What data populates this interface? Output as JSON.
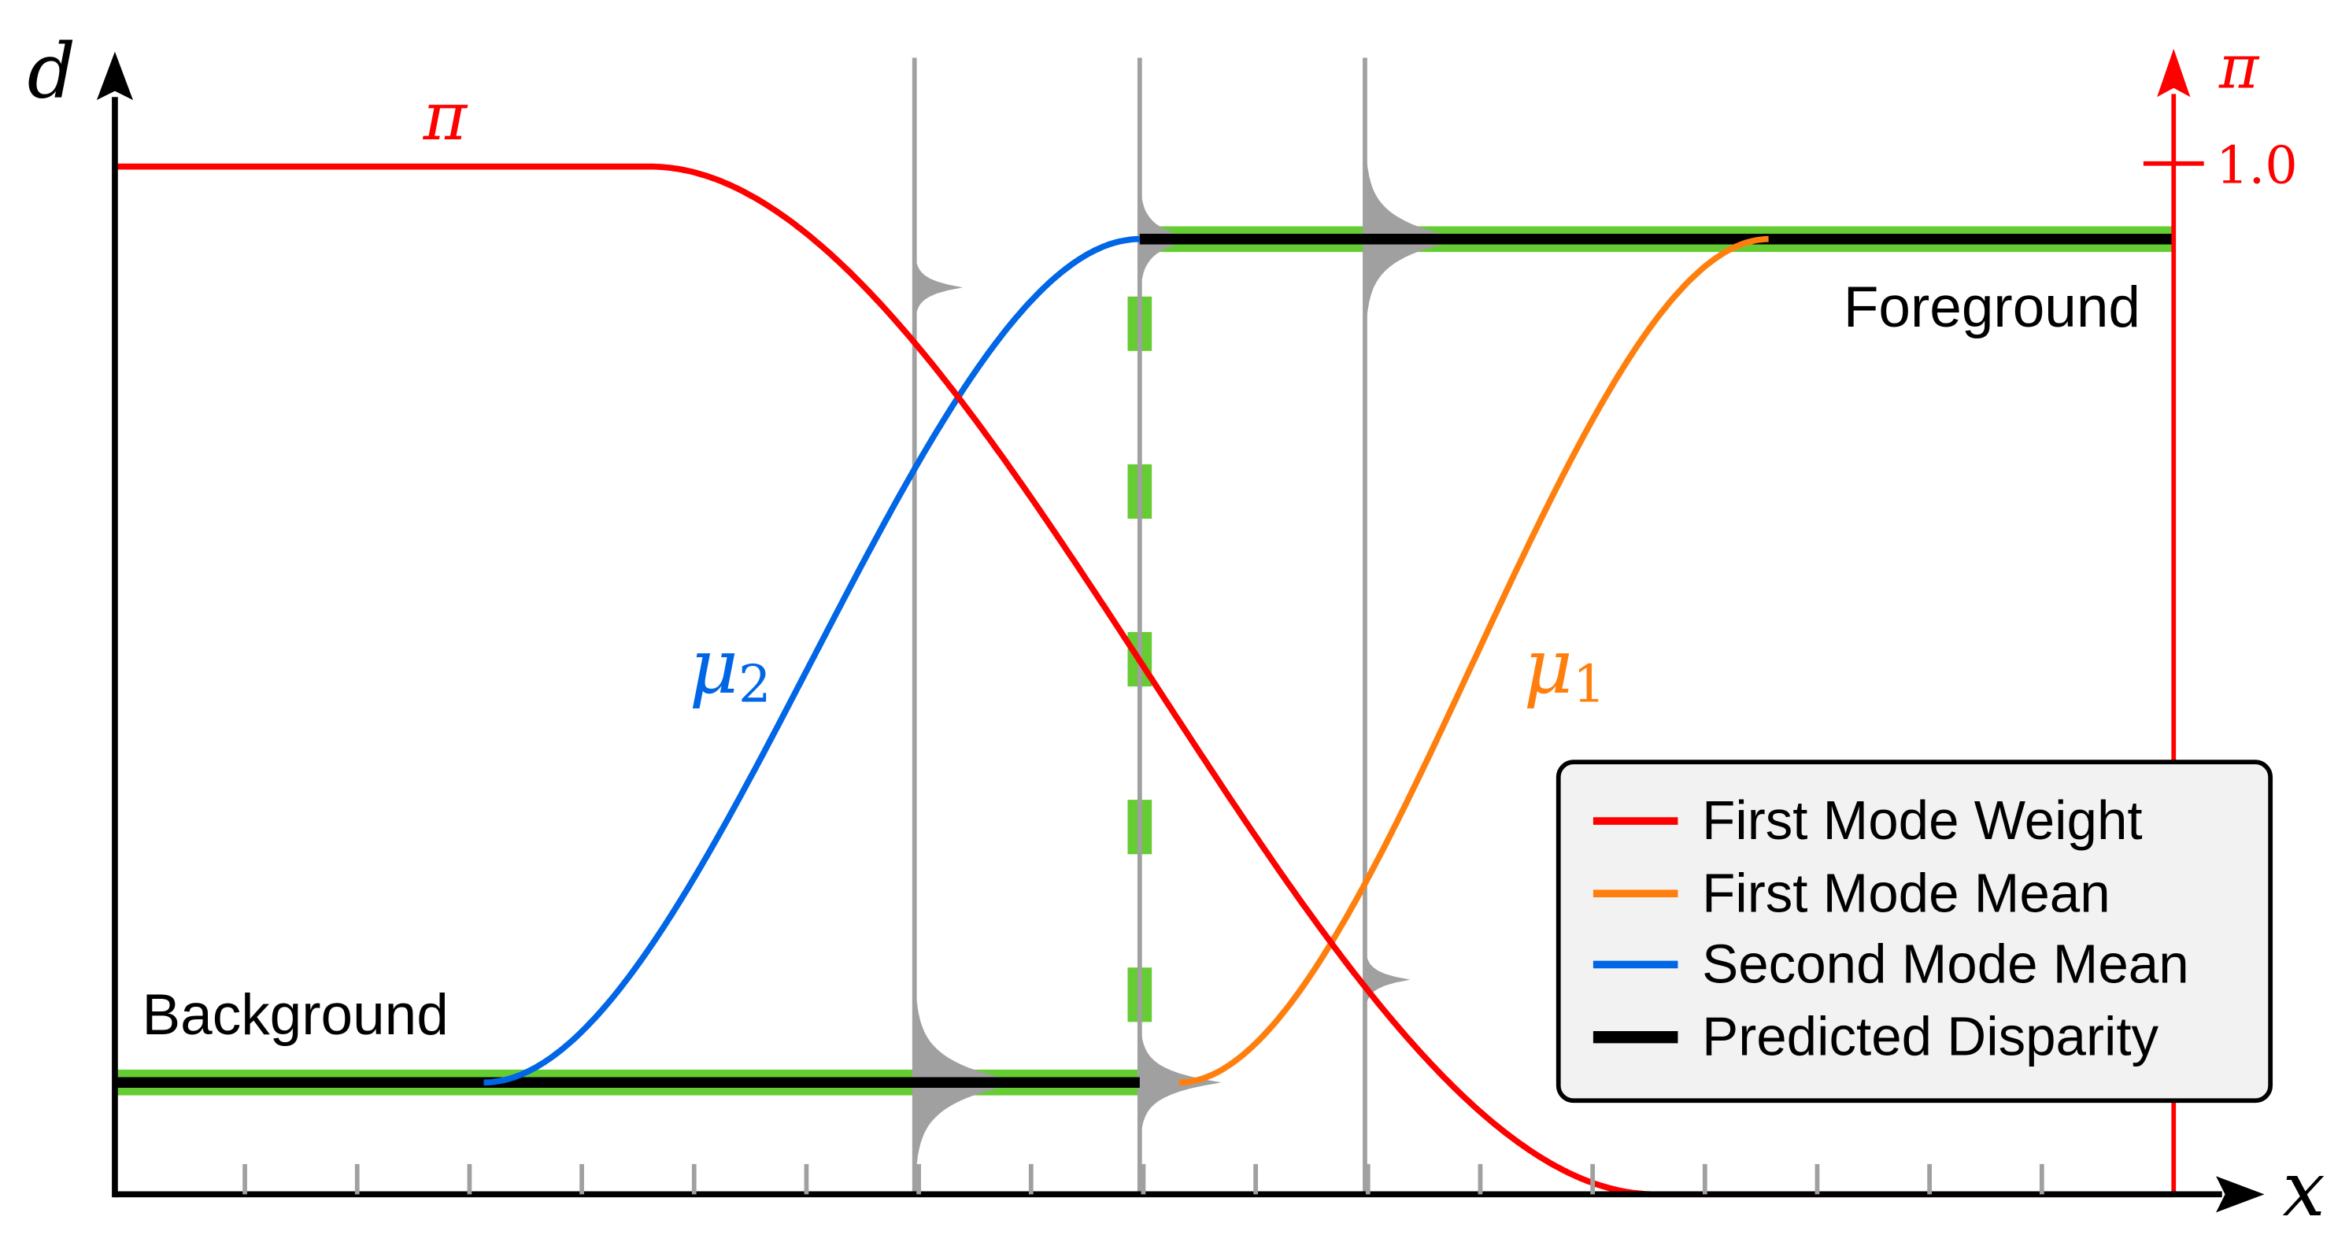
{
  "axes": {
    "y_label": "d",
    "x_label": "x",
    "right_label": "π",
    "right_tick_label": "1.0"
  },
  "curve_labels": {
    "pi": "π",
    "mu2": "μ",
    "mu2_sub": "2",
    "mu1": "μ",
    "mu1_sub": "1"
  },
  "region_labels": {
    "background": "Background",
    "foreground": "Foreground"
  },
  "legend": {
    "items": [
      {
        "label": "First Mode Weight",
        "color": "#ff0000"
      },
      {
        "label": "First Mode Mean",
        "color": "#ff7f0e"
      },
      {
        "label": "Second Mode Mean",
        "color": "#0066e6"
      },
      {
        "label": "Predicted Disparity",
        "color": "#000000"
      }
    ]
  },
  "colors": {
    "weight": "#ff0000",
    "first_mode_mean": "#ff7f0e",
    "second_mode_mean": "#0066e6",
    "predicted": "#000000",
    "ground_truth": "#66cc33",
    "distribution": "#a0a0a0",
    "axis": "#000000"
  }
}
